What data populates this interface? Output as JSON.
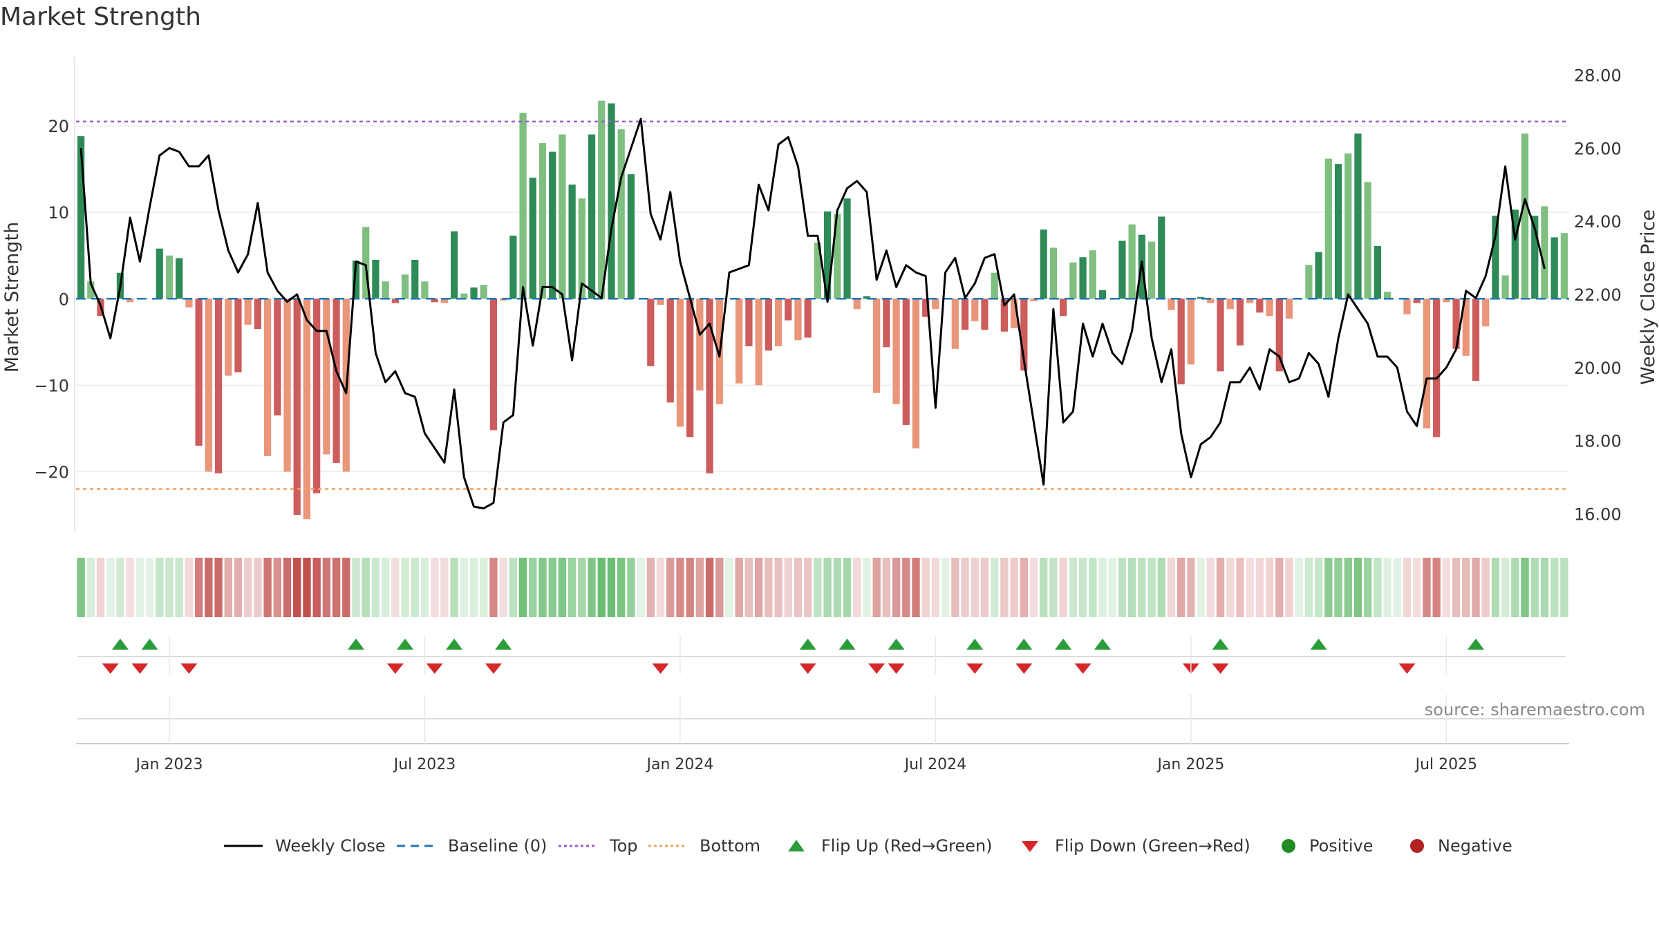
{
  "title": "Market Strength",
  "source": "source: sharemaestro.com",
  "colors": {
    "pos_strong": "#2e8b57",
    "pos_light": "#7fbf7f",
    "neg_strong": "#cd5c5c",
    "neg_light": "#e9967a",
    "close_line": "#000000",
    "baseline": "#1f77b4",
    "top_line": "#9b59d6",
    "bottom_line": "#f0a060",
    "flip_up": "#2a9d3a",
    "flip_down": "#d62728",
    "positive": "#228b22",
    "negative": "#b22222"
  },
  "legend": [
    {
      "label": "Weekly Close",
      "icon": "line-icon"
    },
    {
      "label": "Baseline (0)",
      "icon": "dash-icon"
    },
    {
      "label": "Top",
      "icon": "dotted-purple-icon"
    },
    {
      "label": "Bottom",
      "icon": "dotted-orange-icon"
    },
    {
      "label": "Flip Up (Red→Green)",
      "icon": "triangle-up-icon"
    },
    {
      "label": "Flip Down (Green→Red)",
      "icon": "triangle-down-icon"
    },
    {
      "label": "Positive",
      "icon": "green-dot-icon"
    },
    {
      "label": "Negative",
      "icon": "red-dot-icon"
    }
  ],
  "chart_data": {
    "type": "bar",
    "title": "Market Strength",
    "ylabel": "Market Strength",
    "y2label": "Weekly Close Price",
    "ylim": [
      -27,
      28
    ],
    "y2lim": [
      15.5,
      28.5
    ],
    "yticks": [
      -20,
      -10,
      0,
      10,
      20
    ],
    "y2ticks": [
      16,
      18,
      20,
      22,
      24,
      26,
      28
    ],
    "y2tick_labels": [
      "16.00",
      "18.00",
      "20.00",
      "22.00",
      "24.00",
      "26.00",
      "28.00"
    ],
    "top_level": 20.5,
    "bottom_level": -22,
    "baseline": 0,
    "weeks": 152,
    "x_tick_labels": [
      "Jan 2023",
      "Jul 2023",
      "Jan 2024",
      "Jul 2024",
      "Jan 2025",
      "Jul 2025"
    ],
    "x_tick_weeks": [
      9,
      35,
      61,
      87,
      113,
      139
    ],
    "strength": [
      18.8,
      2,
      -2,
      0,
      3,
      -0.4,
      0,
      0,
      5.8,
      5,
      4.7,
      -1,
      -17,
      -20,
      -20.2,
      -8.9,
      -8.5,
      -3,
      -3.5,
      -18.2,
      -13.5,
      -20,
      -25,
      -25.5,
      -22.5,
      -18,
      -19,
      -20,
      4.4,
      8.3,
      4.5,
      2,
      -0.5,
      2.8,
      4.5,
      2,
      -0.4,
      -0.5,
      7.8,
      0.6,
      1.3,
      1.6,
      -15.2,
      -0.2,
      7.3,
      21.5,
      14,
      18,
      17,
      19,
      13.2,
      11.6,
      19,
      22.9,
      22.6,
      19.6,
      14.4,
      0,
      -7.8,
      -0.7,
      -12,
      -14.8,
      -16,
      -10.6,
      -20.2,
      -12.2,
      0,
      -9.8,
      -5.5,
      -10,
      -6,
      -5.5,
      -2.5,
      -4.8,
      -4.5,
      6.5,
      10.1,
      9.8,
      11.6,
      -1.2,
      0.3,
      -10.9,
      -5.6,
      -12.2,
      -14.6,
      -17.3,
      -2.1,
      -1.2,
      0,
      -5.8,
      -3.6,
      -2.6,
      -3.6,
      3,
      -3.8,
      -3.4,
      -8.3,
      -0.3,
      8,
      5.9,
      -2,
      4.2,
      4.8,
      5.6,
      1,
      0,
      6.7,
      8.6,
      7.4,
      6.6,
      9.5,
      -1.3,
      -9.9,
      -7.6,
      0.2,
      -0.5,
      -8.4,
      -1.2,
      -5.4,
      -0.5,
      -1.6,
      -2,
      -8.4,
      -2.3,
      0,
      3.9,
      5.4,
      16.2,
      15.6,
      16.8,
      19.1,
      13.5,
      6.1,
      0.8,
      0,
      -1.8,
      -0.5,
      -15,
      -16,
      -0.4,
      -5.8,
      -6.6,
      -9.5,
      -3.2,
      9.6,
      2.7,
      10.3,
      19.1,
      9.6,
      10.7,
      7.1,
      7.6
    ],
    "weekly_close": [
      26.0,
      22.3,
      21.7,
      20.8,
      22.2,
      24.1,
      22.9,
      24.4,
      25.8,
      26.0,
      25.9,
      25.5,
      25.5,
      25.8,
      24.3,
      23.2,
      22.6,
      23.1,
      24.5,
      22.6,
      22.1,
      21.8,
      22.0,
      21.3,
      21.0,
      21.0,
      19.9,
      19.3,
      22.9,
      22.8,
      20.4,
      19.6,
      19.9,
      19.3,
      19.2,
      18.2,
      17.8,
      17.4,
      19.4,
      17.0,
      16.2,
      16.15,
      16.3,
      18.5,
      18.7,
      22.2,
      20.6,
      22.2,
      22.2,
      22.0,
      20.2,
      22.3,
      22.1,
      21.9,
      23.8,
      25.2,
      26.0,
      26.8,
      24.2,
      23.5,
      24.8,
      22.9,
      21.9,
      20.9,
      21.2,
      20.3,
      22.6,
      22.7,
      22.8,
      25.0,
      24.3,
      26.1,
      26.3,
      25.5,
      23.6,
      23.6,
      21.8,
      24.3,
      24.9,
      25.1,
      24.8,
      22.4,
      23.2,
      22.2,
      22.8,
      22.6,
      22.5,
      18.9,
      22.6,
      23.0,
      21.9,
      22.3,
      23.0,
      23.1,
      21.7,
      22.0,
      20.2,
      18.5,
      16.8,
      21.6,
      18.5,
      18.8,
      21.2,
      20.3,
      21.2,
      20.4,
      20.1,
      21.0,
      22.9,
      20.8,
      19.6,
      20.5,
      18.2,
      17.0,
      17.9,
      18.1,
      18.5,
      19.6,
      19.6,
      20.0,
      19.4,
      20.5,
      20.3,
      19.6,
      19.7,
      20.4,
      20.1,
      19.2,
      20.8,
      22.0,
      21.6,
      21.2,
      20.3,
      20.3,
      20.0,
      18.8,
      18.4,
      19.7,
      19.7,
      20.0,
      20.5,
      22.1,
      21.9,
      22.5,
      23.6,
      25.5,
      23.5,
      24.6,
      23.8,
      22.7
    ],
    "flip_up_weeks": [
      4,
      7,
      28,
      33,
      38,
      43,
      74,
      78,
      83,
      91,
      96,
      100,
      104,
      116,
      126,
      142
    ],
    "flip_down_weeks": [
      3,
      6,
      11,
      32,
      36,
      42,
      59,
      74,
      81,
      83,
      91,
      96,
      102,
      113,
      116,
      135
    ]
  }
}
